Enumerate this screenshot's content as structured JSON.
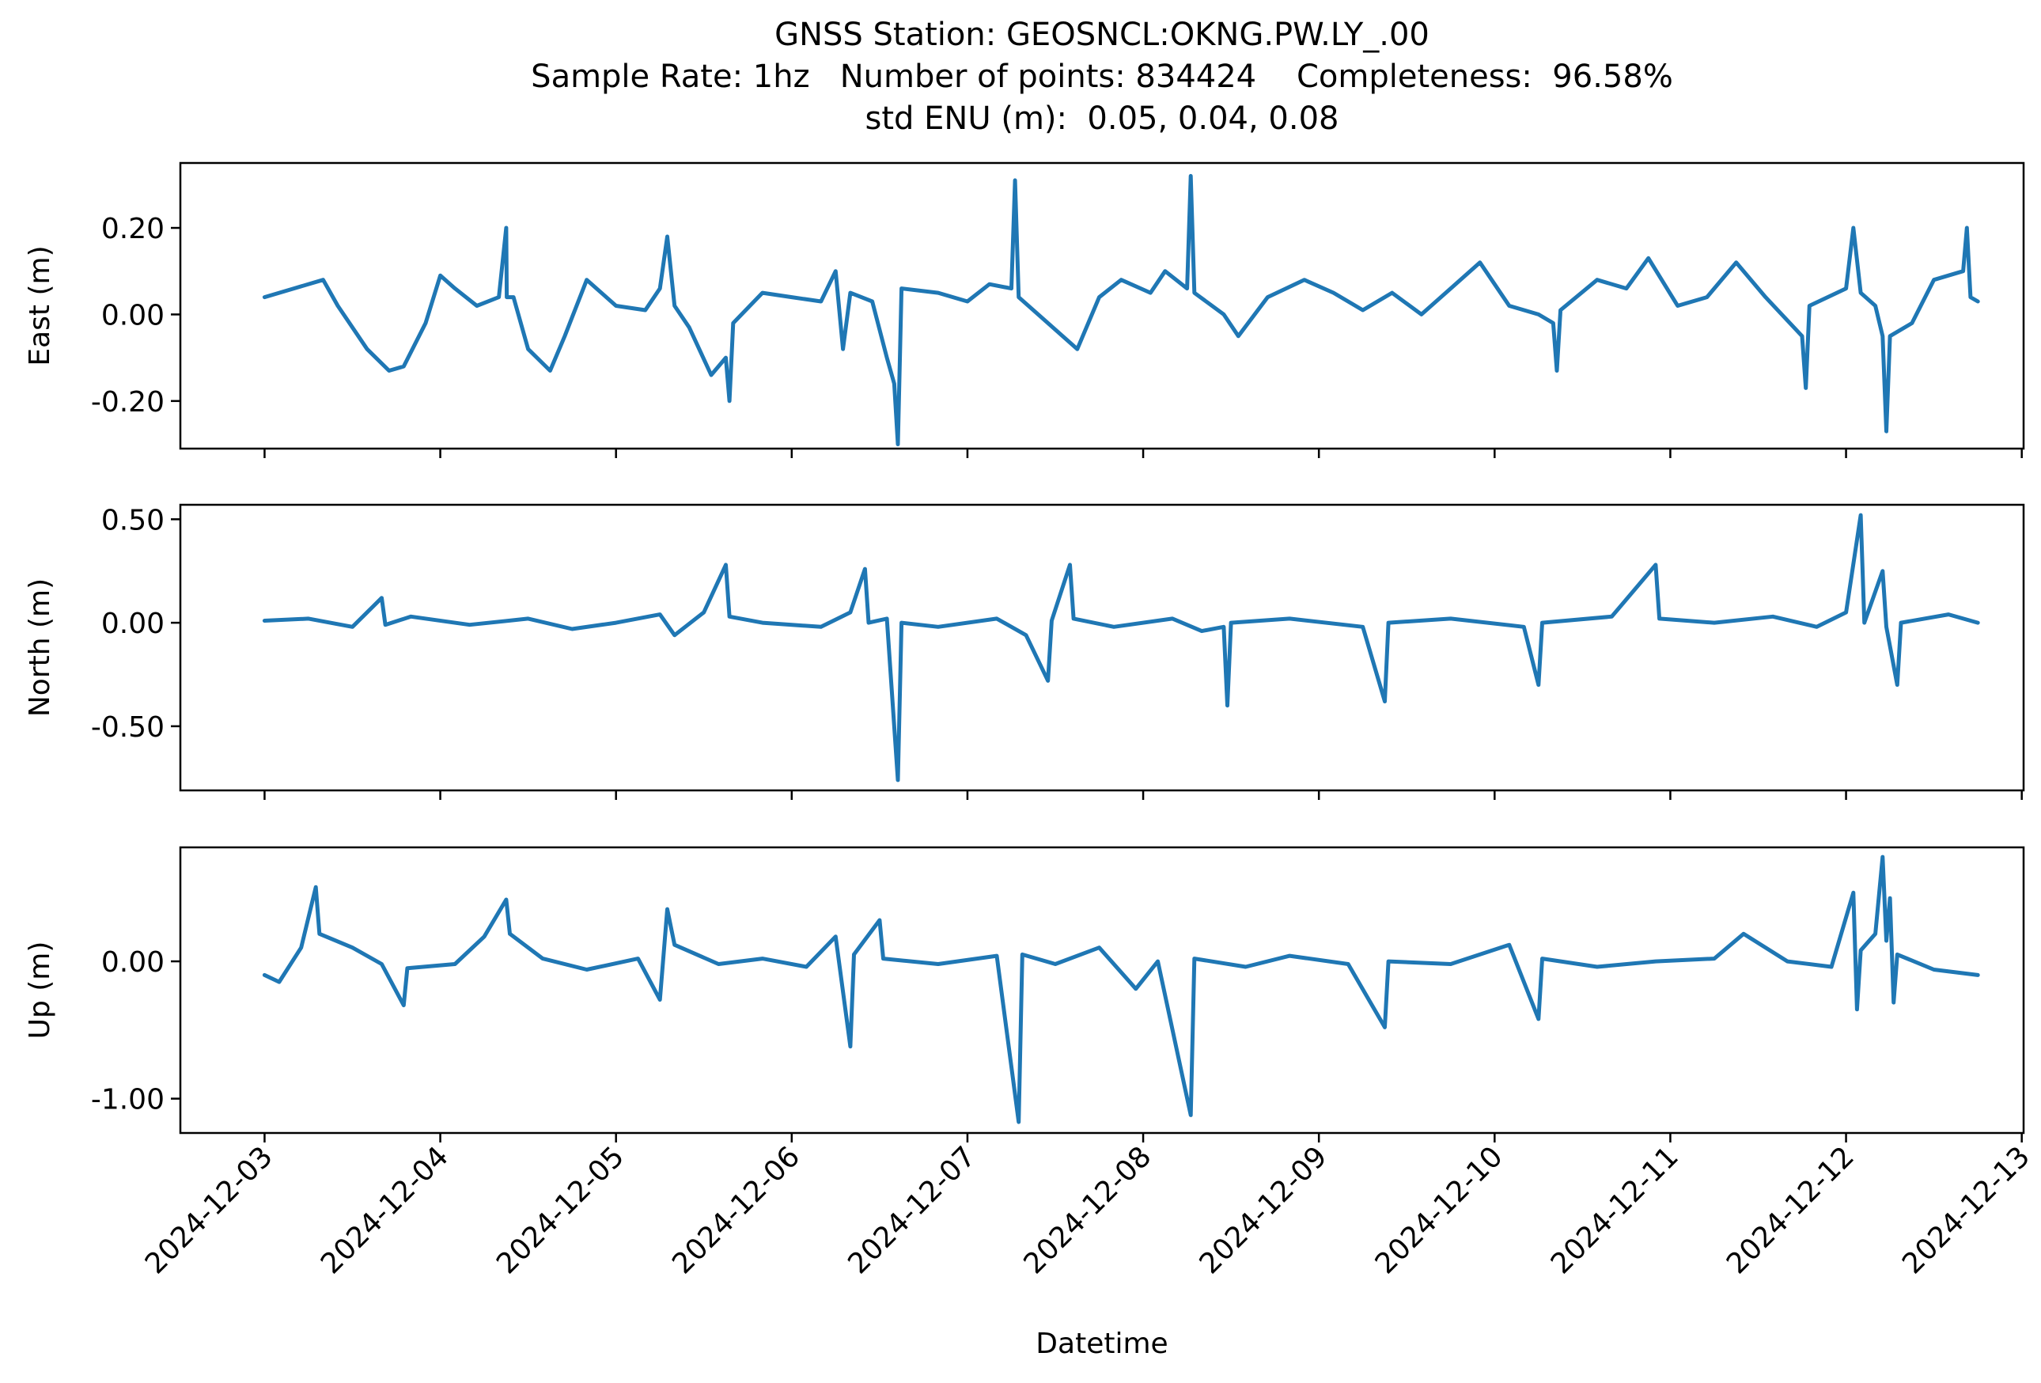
{
  "titles": {
    "line1": "GNSS Station: GEOSNCL:OKNG.PW.LY_.00",
    "line2": "Sample Rate: 1hz   Number of points: 834424    Completeness:  96.58%",
    "line3": "std ENU (m):  0.05, 0.04, 0.08"
  },
  "chart_data": {
    "type": "line",
    "xlabel": "Datetime",
    "x_range": [
      "2024-12-02T12:30",
      "2024-12-13T00:15"
    ],
    "x_ticks": [
      "2024-12-03",
      "2024-12-04",
      "2024-12-05",
      "2024-12-06",
      "2024-12-07",
      "2024-12-08",
      "2024-12-09",
      "2024-12-10",
      "2024-12-11",
      "2024-12-12",
      "2024-12-13"
    ],
    "line_color": "#1f77b4",
    "panels": [
      {
        "name": "east",
        "ylabel": "East (m)",
        "ylim": [
          -0.31,
          0.35
        ],
        "y_ticks": [
          0.2,
          0.0,
          -0.2
        ],
        "y_tick_labels": [
          "0.20",
          "0.00",
          "-0.20"
        ],
        "series": [
          {
            "x": "2024-12-03T00:00",
            "y": 0.04
          },
          {
            "x": "2024-12-03T04:00",
            "y": 0.06
          },
          {
            "x": "2024-12-03T08:00",
            "y": 0.08
          },
          {
            "x": "2024-12-03T10:00",
            "y": 0.02
          },
          {
            "x": "2024-12-03T14:00",
            "y": -0.08
          },
          {
            "x": "2024-12-03T17:00",
            "y": -0.13
          },
          {
            "x": "2024-12-03T19:00",
            "y": -0.12
          },
          {
            "x": "2024-12-03T22:00",
            "y": -0.02
          },
          {
            "x": "2024-12-04T00:00",
            "y": 0.09
          },
          {
            "x": "2024-12-04T02:00",
            "y": 0.06
          },
          {
            "x": "2024-12-04T05:00",
            "y": 0.02
          },
          {
            "x": "2024-12-04T08:00",
            "y": 0.04
          },
          {
            "x": "2024-12-04T09:00",
            "y": 0.2
          },
          {
            "x": "2024-12-04T09:05",
            "y": 0.04
          },
          {
            "x": "2024-12-04T10:00",
            "y": 0.04
          },
          {
            "x": "2024-12-04T12:00",
            "y": -0.08
          },
          {
            "x": "2024-12-04T15:00",
            "y": -0.13
          },
          {
            "x": "2024-12-04T17:00",
            "y": -0.05
          },
          {
            "x": "2024-12-04T20:00",
            "y": 0.08
          },
          {
            "x": "2024-12-05T00:00",
            "y": 0.02
          },
          {
            "x": "2024-12-05T04:00",
            "y": 0.01
          },
          {
            "x": "2024-12-05T06:00",
            "y": 0.06
          },
          {
            "x": "2024-12-05T07:00",
            "y": 0.18
          },
          {
            "x": "2024-12-05T08:00",
            "y": 0.02
          },
          {
            "x": "2024-12-05T10:00",
            "y": -0.03
          },
          {
            "x": "2024-12-05T13:00",
            "y": -0.14
          },
          {
            "x": "2024-12-05T15:00",
            "y": -0.1
          },
          {
            "x": "2024-12-05T15:30",
            "y": -0.2
          },
          {
            "x": "2024-12-05T16:00",
            "y": -0.02
          },
          {
            "x": "2024-12-05T20:00",
            "y": 0.05
          },
          {
            "x": "2024-12-06T00:00",
            "y": 0.04
          },
          {
            "x": "2024-12-06T04:00",
            "y": 0.03
          },
          {
            "x": "2024-12-06T06:00",
            "y": 0.1
          },
          {
            "x": "2024-12-06T07:00",
            "y": -0.08
          },
          {
            "x": "2024-12-06T08:00",
            "y": 0.05
          },
          {
            "x": "2024-12-06T11:00",
            "y": 0.03
          },
          {
            "x": "2024-12-06T13:00",
            "y": -0.1
          },
          {
            "x": "2024-12-06T14:00",
            "y": -0.16
          },
          {
            "x": "2024-12-06T14:30",
            "y": -0.3
          },
          {
            "x": "2024-12-06T15:00",
            "y": 0.06
          },
          {
            "x": "2024-12-06T20:00",
            "y": 0.05
          },
          {
            "x": "2024-12-07T00:00",
            "y": 0.03
          },
          {
            "x": "2024-12-07T03:00",
            "y": 0.07
          },
          {
            "x": "2024-12-07T06:00",
            "y": 0.06
          },
          {
            "x": "2024-12-07T06:30",
            "y": 0.31
          },
          {
            "x": "2024-12-07T07:00",
            "y": 0.04
          },
          {
            "x": "2024-12-07T11:00",
            "y": -0.02
          },
          {
            "x": "2024-12-07T15:00",
            "y": -0.08
          },
          {
            "x": "2024-12-07T18:00",
            "y": 0.04
          },
          {
            "x": "2024-12-07T21:00",
            "y": 0.08
          },
          {
            "x": "2024-12-08T01:00",
            "y": 0.05
          },
          {
            "x": "2024-12-08T03:00",
            "y": 0.1
          },
          {
            "x": "2024-12-08T06:00",
            "y": 0.06
          },
          {
            "x": "2024-12-08T06:30",
            "y": 0.32
          },
          {
            "x": "2024-12-08T07:00",
            "y": 0.05
          },
          {
            "x": "2024-12-08T11:00",
            "y": 0.0
          },
          {
            "x": "2024-12-08T13:00",
            "y": -0.05
          },
          {
            "x": "2024-12-08T17:00",
            "y": 0.04
          },
          {
            "x": "2024-12-08T22:00",
            "y": 0.08
          },
          {
            "x": "2024-12-09T02:00",
            "y": 0.05
          },
          {
            "x": "2024-12-09T06:00",
            "y": 0.01
          },
          {
            "x": "2024-12-09T10:00",
            "y": 0.05
          },
          {
            "x": "2024-12-09T14:00",
            "y": 0.0
          },
          {
            "x": "2024-12-09T18:00",
            "y": 0.06
          },
          {
            "x": "2024-12-09T22:00",
            "y": 0.12
          },
          {
            "x": "2024-12-10T02:00",
            "y": 0.02
          },
          {
            "x": "2024-12-10T06:00",
            "y": 0.0
          },
          {
            "x": "2024-12-10T08:00",
            "y": -0.02
          },
          {
            "x": "2024-12-10T08:30",
            "y": -0.13
          },
          {
            "x": "2024-12-10T09:00",
            "y": 0.01
          },
          {
            "x": "2024-12-10T14:00",
            "y": 0.08
          },
          {
            "x": "2024-12-10T18:00",
            "y": 0.06
          },
          {
            "x": "2024-12-10T21:00",
            "y": 0.13
          },
          {
            "x": "2024-12-11T01:00",
            "y": 0.02
          },
          {
            "x": "2024-12-11T05:00",
            "y": 0.04
          },
          {
            "x": "2024-12-11T09:00",
            "y": 0.12
          },
          {
            "x": "2024-12-11T13:00",
            "y": 0.04
          },
          {
            "x": "2024-12-11T18:00",
            "y": -0.05
          },
          {
            "x": "2024-12-11T18:30",
            "y": -0.17
          },
          {
            "x": "2024-12-11T19:00",
            "y": 0.02
          },
          {
            "x": "2024-12-12T00:00",
            "y": 0.06
          },
          {
            "x": "2024-12-12T01:00",
            "y": 0.2
          },
          {
            "x": "2024-12-12T02:00",
            "y": 0.05
          },
          {
            "x": "2024-12-12T04:00",
            "y": 0.02
          },
          {
            "x": "2024-12-12T05:00",
            "y": -0.05
          },
          {
            "x": "2024-12-12T05:30",
            "y": -0.27
          },
          {
            "x": "2024-12-12T06:00",
            "y": -0.05
          },
          {
            "x": "2024-12-12T09:00",
            "y": -0.02
          },
          {
            "x": "2024-12-12T12:00",
            "y": 0.08
          },
          {
            "x": "2024-12-12T16:00",
            "y": 0.1
          },
          {
            "x": "2024-12-12T16:30",
            "y": 0.2
          },
          {
            "x": "2024-12-12T17:00",
            "y": 0.04
          },
          {
            "x": "2024-12-12T18:00",
            "y": 0.03
          }
        ]
      },
      {
        "name": "north",
        "ylabel": "North (m)",
        "ylim": [
          -0.81,
          0.57
        ],
        "y_ticks": [
          0.5,
          0.0,
          -0.5
        ],
        "y_tick_labels": [
          "0.50",
          "0.00",
          "-0.50"
        ],
        "series": [
          {
            "x": "2024-12-03T00:00",
            "y": 0.01
          },
          {
            "x": "2024-12-03T06:00",
            "y": 0.02
          },
          {
            "x": "2024-12-03T12:00",
            "y": -0.02
          },
          {
            "x": "2024-12-03T16:00",
            "y": 0.12
          },
          {
            "x": "2024-12-03T16:30",
            "y": -0.01
          },
          {
            "x": "2024-12-03T20:00",
            "y": 0.03
          },
          {
            "x": "2024-12-04T04:00",
            "y": -0.01
          },
          {
            "x": "2024-12-04T12:00",
            "y": 0.02
          },
          {
            "x": "2024-12-04T18:00",
            "y": -0.03
          },
          {
            "x": "2024-12-05T00:00",
            "y": 0.0
          },
          {
            "x": "2024-12-05T06:00",
            "y": 0.04
          },
          {
            "x": "2024-12-05T08:00",
            "y": -0.06
          },
          {
            "x": "2024-12-05T12:00",
            "y": 0.05
          },
          {
            "x": "2024-12-05T15:00",
            "y": 0.28
          },
          {
            "x": "2024-12-05T15:30",
            "y": 0.03
          },
          {
            "x": "2024-12-05T20:00",
            "y": 0.0
          },
          {
            "x": "2024-12-06T04:00",
            "y": -0.02
          },
          {
            "x": "2024-12-06T08:00",
            "y": 0.05
          },
          {
            "x": "2024-12-06T10:00",
            "y": 0.26
          },
          {
            "x": "2024-12-06T10:30",
            "y": 0.0
          },
          {
            "x": "2024-12-06T13:00",
            "y": 0.02
          },
          {
            "x": "2024-12-06T14:30",
            "y": -0.76
          },
          {
            "x": "2024-12-06T15:00",
            "y": 0.0
          },
          {
            "x": "2024-12-06T20:00",
            "y": -0.02
          },
          {
            "x": "2024-12-07T04:00",
            "y": 0.02
          },
          {
            "x": "2024-12-07T08:00",
            "y": -0.06
          },
          {
            "x": "2024-12-07T11:00",
            "y": -0.28
          },
          {
            "x": "2024-12-07T11:30",
            "y": 0.01
          },
          {
            "x": "2024-12-07T14:00",
            "y": 0.28
          },
          {
            "x": "2024-12-07T14:30",
            "y": 0.02
          },
          {
            "x": "2024-12-07T20:00",
            "y": -0.02
          },
          {
            "x": "2024-12-08T04:00",
            "y": 0.02
          },
          {
            "x": "2024-12-08T08:00",
            "y": -0.04
          },
          {
            "x": "2024-12-08T11:00",
            "y": -0.02
          },
          {
            "x": "2024-12-08T11:30",
            "y": -0.4
          },
          {
            "x": "2024-12-08T12:00",
            "y": 0.0
          },
          {
            "x": "2024-12-08T20:00",
            "y": 0.02
          },
          {
            "x": "2024-12-09T06:00",
            "y": -0.02
          },
          {
            "x": "2024-12-09T09:00",
            "y": -0.38
          },
          {
            "x": "2024-12-09T09:30",
            "y": 0.0
          },
          {
            "x": "2024-12-09T18:00",
            "y": 0.02
          },
          {
            "x": "2024-12-10T04:00",
            "y": -0.02
          },
          {
            "x": "2024-12-10T06:00",
            "y": -0.3
          },
          {
            "x": "2024-12-10T06:30",
            "y": 0.0
          },
          {
            "x": "2024-12-10T16:00",
            "y": 0.03
          },
          {
            "x": "2024-12-10T22:00",
            "y": 0.28
          },
          {
            "x": "2024-12-10T22:30",
            "y": 0.02
          },
          {
            "x": "2024-12-11T06:00",
            "y": 0.0
          },
          {
            "x": "2024-12-11T14:00",
            "y": 0.03
          },
          {
            "x": "2024-12-11T20:00",
            "y": -0.02
          },
          {
            "x": "2024-12-12T00:00",
            "y": 0.05
          },
          {
            "x": "2024-12-12T02:00",
            "y": 0.52
          },
          {
            "x": "2024-12-12T02:30",
            "y": 0.0
          },
          {
            "x": "2024-12-12T05:00",
            "y": 0.25
          },
          {
            "x": "2024-12-12T05:30",
            "y": -0.02
          },
          {
            "x": "2024-12-12T07:00",
            "y": -0.3
          },
          {
            "x": "2024-12-12T07:30",
            "y": 0.0
          },
          {
            "x": "2024-12-12T14:00",
            "y": 0.04
          },
          {
            "x": "2024-12-12T18:00",
            "y": 0.0
          }
        ]
      },
      {
        "name": "up",
        "ylabel": "Up (m)",
        "ylim": [
          -1.25,
          0.83
        ],
        "y_ticks": [
          0.0,
          -1.0
        ],
        "y_tick_labels": [
          "0.00",
          "-1.00"
        ],
        "series": [
          {
            "x": "2024-12-03T00:00",
            "y": -0.1
          },
          {
            "x": "2024-12-03T02:00",
            "y": -0.15
          },
          {
            "x": "2024-12-03T05:00",
            "y": 0.1
          },
          {
            "x": "2024-12-03T07:00",
            "y": 0.54
          },
          {
            "x": "2024-12-03T07:30",
            "y": 0.2
          },
          {
            "x": "2024-12-03T12:00",
            "y": 0.1
          },
          {
            "x": "2024-12-03T16:00",
            "y": -0.02
          },
          {
            "x": "2024-12-03T19:00",
            "y": -0.32
          },
          {
            "x": "2024-12-03T19:30",
            "y": -0.05
          },
          {
            "x": "2024-12-04T02:00",
            "y": -0.02
          },
          {
            "x": "2024-12-04T06:00",
            "y": 0.18
          },
          {
            "x": "2024-12-04T09:00",
            "y": 0.45
          },
          {
            "x": "2024-12-04T09:30",
            "y": 0.2
          },
          {
            "x": "2024-12-04T14:00",
            "y": 0.02
          },
          {
            "x": "2024-12-04T20:00",
            "y": -0.06
          },
          {
            "x": "2024-12-05T03:00",
            "y": 0.02
          },
          {
            "x": "2024-12-05T06:00",
            "y": -0.28
          },
          {
            "x": "2024-12-05T07:00",
            "y": 0.38
          },
          {
            "x": "2024-12-05T08:00",
            "y": 0.12
          },
          {
            "x": "2024-12-05T14:00",
            "y": -0.02
          },
          {
            "x": "2024-12-05T20:00",
            "y": 0.02
          },
          {
            "x": "2024-12-06T02:00",
            "y": -0.04
          },
          {
            "x": "2024-12-06T06:00",
            "y": 0.18
          },
          {
            "x": "2024-12-06T08:00",
            "y": -0.62
          },
          {
            "x": "2024-12-06T08:30",
            "y": 0.05
          },
          {
            "x": "2024-12-06T12:00",
            "y": 0.3
          },
          {
            "x": "2024-12-06T12:30",
            "y": 0.02
          },
          {
            "x": "2024-12-06T20:00",
            "y": -0.02
          },
          {
            "x": "2024-12-07T04:00",
            "y": 0.04
          },
          {
            "x": "2024-12-07T07:00",
            "y": -1.17
          },
          {
            "x": "2024-12-07T07:30",
            "y": 0.05
          },
          {
            "x": "2024-12-07T12:00",
            "y": -0.02
          },
          {
            "x": "2024-12-07T18:00",
            "y": 0.1
          },
          {
            "x": "2024-12-07T23:00",
            "y": -0.2
          },
          {
            "x": "2024-12-08T02:00",
            "y": 0.0
          },
          {
            "x": "2024-12-08T06:30",
            "y": -1.12
          },
          {
            "x": "2024-12-08T07:00",
            "y": 0.02
          },
          {
            "x": "2024-12-08T14:00",
            "y": -0.04
          },
          {
            "x": "2024-12-08T20:00",
            "y": 0.04
          },
          {
            "x": "2024-12-09T04:00",
            "y": -0.02
          },
          {
            "x": "2024-12-09T09:00",
            "y": -0.48
          },
          {
            "x": "2024-12-09T09:30",
            "y": 0.0
          },
          {
            "x": "2024-12-09T18:00",
            "y": -0.02
          },
          {
            "x": "2024-12-10T02:00",
            "y": 0.12
          },
          {
            "x": "2024-12-10T06:00",
            "y": -0.42
          },
          {
            "x": "2024-12-10T06:30",
            "y": 0.02
          },
          {
            "x": "2024-12-10T14:00",
            "y": -0.04
          },
          {
            "x": "2024-12-10T22:00",
            "y": 0.0
          },
          {
            "x": "2024-12-11T06:00",
            "y": 0.02
          },
          {
            "x": "2024-12-11T10:00",
            "y": 0.2
          },
          {
            "x": "2024-12-11T16:00",
            "y": 0.0
          },
          {
            "x": "2024-12-11T22:00",
            "y": -0.04
          },
          {
            "x": "2024-12-12T01:00",
            "y": 0.5
          },
          {
            "x": "2024-12-12T01:30",
            "y": -0.35
          },
          {
            "x": "2024-12-12T02:00",
            "y": 0.08
          },
          {
            "x": "2024-12-12T04:00",
            "y": 0.2
          },
          {
            "x": "2024-12-12T05:00",
            "y": 0.76
          },
          {
            "x": "2024-12-12T05:30",
            "y": 0.15
          },
          {
            "x": "2024-12-12T06:00",
            "y": 0.46
          },
          {
            "x": "2024-12-12T06:30",
            "y": -0.3
          },
          {
            "x": "2024-12-12T07:00",
            "y": 0.05
          },
          {
            "x": "2024-12-12T12:00",
            "y": -0.06
          },
          {
            "x": "2024-12-12T18:00",
            "y": -0.1
          }
        ]
      }
    ]
  }
}
